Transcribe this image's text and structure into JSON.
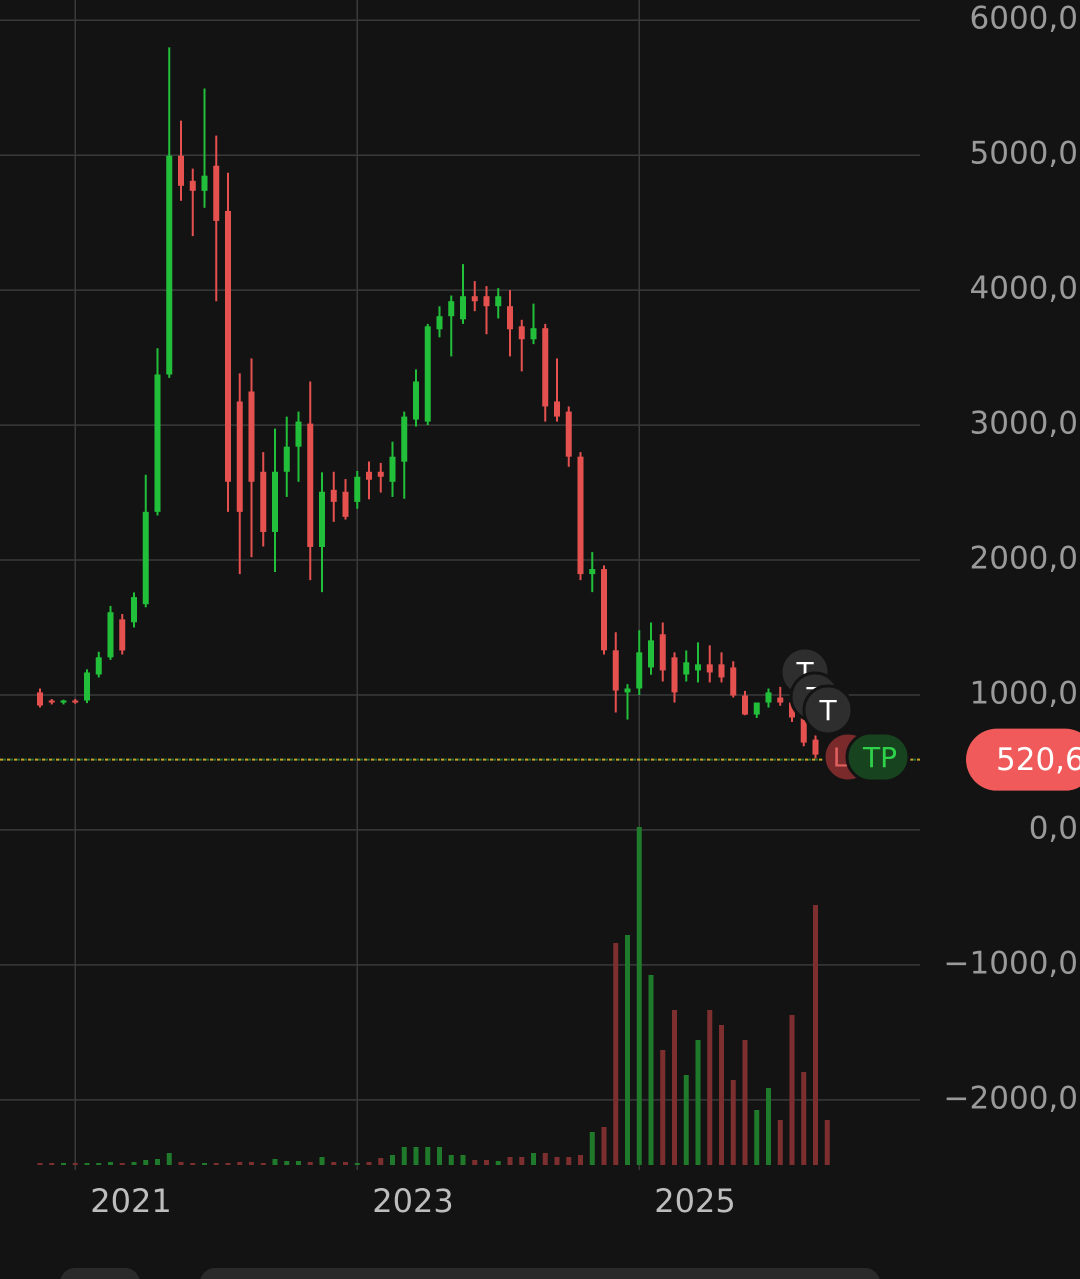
{
  "chart_data": {
    "type": "candlestick",
    "categories": [
      null,
      null,
      null,
      "2021",
      null,
      null,
      null,
      null,
      null,
      null,
      null,
      null,
      null,
      null,
      null,
      null,
      null,
      null,
      null,
      null,
      null,
      null,
      null,
      null,
      null,
      null,
      null,
      "2023",
      null,
      null,
      null,
      null,
      null,
      null,
      null,
      null,
      null,
      null,
      null,
      null,
      null,
      null,
      null,
      null,
      null,
      null,
      null,
      null,
      null,
      null,
      null,
      "2025",
      null,
      null,
      null,
      null,
      null,
      null,
      null,
      null,
      null,
      null,
      null,
      null,
      null,
      null,
      null,
      null
    ],
    "open": [
      1019,
      959,
      944,
      959,
      959,
      1152,
      1279,
      1560,
      1539,
      1673,
      2357,
      3375,
      4996,
      4810,
      4736,
      4922,
      4587,
      3175,
      3249,
      2654,
      2208,
      2654,
      2840,
      3011,
      2097,
      2520,
      2506,
      2431,
      2654,
      2654,
      2580,
      2729,
      3041,
      3026,
      3710,
      3807,
      3784,
      3955,
      3955,
      3881,
      3881,
      3732,
      3636,
      3718,
      3175,
      3100,
      2766,
      1896,
      1933,
      1331,
      1019,
      1048,
      1204,
      1450,
      1279,
      1152,
      1182,
      1227,
      1227,
      1204,
      996,
      855,
      944,
      981,
      944,
      833,
      669,
      558
    ],
    "high": [
      1048,
      970,
      965,
      970,
      1190,
      1320,
      1660,
      1600,
      1760,
      2632,
      3569,
      5799,
      5256,
      4900,
      5494,
      5145,
      4870,
      3383,
      3494,
      2800,
      2974,
      3063,
      3100,
      3323,
      2650,
      2654,
      2600,
      2660,
      2730,
      2720,
      2877,
      3100,
      3413,
      3750,
      3880,
      3960,
      4193,
      4067,
      4030,
      4015,
      4000,
      3780,
      3900,
      3750,
      3494,
      3138,
      2800,
      2059,
      1960,
      1465,
      1080,
      1480,
      1537,
      1537,
      1316,
      1330,
      1390,
      1368,
      1316,
      1250,
      1030,
      944,
      1048,
      1060,
      1000,
      880,
      700,
      580
    ],
    "low": [
      907,
      930,
      930,
      935,
      940,
      1130,
      1260,
      1300,
      1500,
      1650,
      2330,
      3350,
      4662,
      4400,
      4610,
      3918,
      2357,
      1896,
      2022,
      2100,
      1911,
      2468,
      2580,
      1851,
      1762,
      2283,
      2300,
      2380,
      2450,
      2500,
      2468,
      2454,
      2989,
      3000,
      3650,
      3509,
      3750,
      3844,
      3673,
      3790,
      3509,
      3398,
      3600,
      3026,
      3026,
      2691,
      1851,
      1762,
      1300,
      870,
      818,
      1000,
      1150,
      1100,
      944,
      1100,
      1093,
      1093,
      1093,
      981,
      850,
      830,
      907,
      920,
      800,
      620,
      530,
      500
    ],
    "close": [
      922,
      944,
      959,
      944,
      1167,
      1279,
      1613,
      1330,
      1725,
      2357,
      3375,
      4996,
      4773,
      4736,
      4848,
      4513,
      2580,
      2357,
      2580,
      2208,
      2654,
      2840,
      3026,
      2097,
      2506,
      2431,
      2320,
      2617,
      2595,
      2617,
      2766,
      3063,
      3323,
      3732,
      3807,
      3918,
      3955,
      3918,
      3881,
      3955,
      3710,
      3636,
      3718,
      3138,
      3063,
      2766,
      1896,
      1933,
      1331,
      1033,
      1048,
      1316,
      1405,
      1182,
      1019,
      1242,
      1227,
      1167,
      1130,
      996,
      855,
      944,
      1019,
      944,
      833,
      647,
      558,
      520.6
    ],
    "volume": [
      2,
      2,
      2,
      2,
      2,
      2,
      3,
      2,
      3,
      5,
      6,
      12,
      3,
      2,
      2,
      2,
      2,
      3,
      3,
      2,
      6,
      4,
      4,
      3,
      8,
      3,
      3,
      2,
      3,
      7,
      10,
      18,
      18,
      18,
      18,
      10,
      10,
      5,
      5,
      4,
      8,
      8,
      12,
      12,
      8,
      8,
      10,
      33,
      38,
      222,
      230,
      338,
      190,
      115,
      155,
      90,
      125,
      155,
      140,
      85,
      125,
      55,
      77,
      45,
      150,
      93,
      260,
      45
    ],
    "up_color": "#22c03a",
    "down_color": "#e5514f",
    "volume_up_color": "#1f7a2b",
    "volume_down_color": "#7d2f30",
    "ylim": [
      -2520,
      6150
    ],
    "yticks": [
      {
        "value": 6000,
        "label": "6000,0"
      },
      {
        "value": 5000,
        "label": "5000,0"
      },
      {
        "value": 4000,
        "label": "4000,0"
      },
      {
        "value": 3000,
        "label": "3000,0"
      },
      {
        "value": 2000,
        "label": "2000,0"
      },
      {
        "value": 1000,
        "label": "1000,0"
      },
      {
        "value": 0,
        "label": "0,0"
      },
      {
        "value": -1000,
        "label": "−1000,0"
      },
      {
        "value": -2000,
        "label": "−2000,0"
      }
    ],
    "grid": true,
    "last_price": {
      "value": 520.6,
      "label": "520,6"
    },
    "markers": [
      "T",
      "T",
      "T",
      "L",
      "TP"
    ]
  }
}
